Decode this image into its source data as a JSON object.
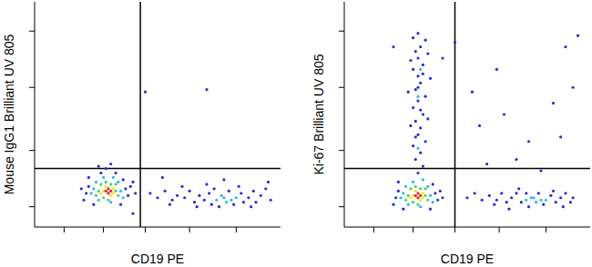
{
  "chart_data": [
    {
      "type": "scatter",
      "x_label": "CD19 PE",
      "y_label": "Mouse IgG1 Brilliant UV 805",
      "xlim": [
        0,
        100
      ],
      "ylim": [
        0,
        100
      ],
      "xticks": [
        12,
        28,
        45,
        63,
        82
      ],
      "yticks": [
        9,
        34,
        62,
        87
      ],
      "tick_labels": false,
      "gates": {
        "x": 43,
        "y": 26
      },
      "series": [
        {
          "color": "#2b2bd4",
          "points": [
            [
              21,
              15
            ],
            [
              22,
              18
            ],
            [
              37,
              17
            ],
            [
              38,
              14
            ],
            [
              24,
              10
            ],
            [
              36,
              21
            ],
            [
              27,
              24
            ],
            [
              33,
              24
            ],
            [
              20,
              12
            ],
            [
              39,
              18
            ],
            [
              29,
              26
            ],
            [
              22,
              22
            ],
            [
              35,
              10
            ],
            [
              40,
              20
            ],
            [
              26,
              27
            ],
            [
              31,
              28
            ],
            [
              19,
              17
            ],
            [
              41,
              15
            ],
            [
              47,
              15
            ],
            [
              50,
              13
            ],
            [
              53,
              16
            ],
            [
              56,
              12
            ],
            [
              58,
              14
            ],
            [
              61,
              13
            ],
            [
              63,
              16
            ],
            [
              65,
              11
            ],
            [
              67,
              14
            ],
            [
              69,
              12
            ],
            [
              71,
              15
            ],
            [
              72,
              10
            ],
            [
              73,
              17
            ],
            [
              75,
              9
            ],
            [
              79,
              16
            ],
            [
              81,
              10
            ],
            [
              84,
              15
            ],
            [
              85,
              11
            ],
            [
              87,
              13
            ],
            [
              89,
              16
            ],
            [
              90,
              11
            ],
            [
              92,
              14
            ],
            [
              94,
              17
            ],
            [
              96,
              12
            ],
            [
              60,
              18
            ],
            [
              70,
              19
            ],
            [
              83,
              18
            ],
            [
              88,
              9
            ],
            [
              66,
              9
            ],
            [
              55,
              10
            ],
            [
              45,
              60
            ],
            [
              70,
              61
            ],
            [
              95,
              20
            ],
            [
              40,
              6
            ],
            [
              52,
              22
            ],
            [
              77,
              21
            ]
          ]
        },
        {
          "color": "#2fb6e8",
          "points": [
            [
              24,
              17
            ],
            [
              35,
              16
            ],
            [
              26,
              12
            ],
            [
              34,
              20
            ],
            [
              28,
              22
            ],
            [
              31,
              11
            ],
            [
              23,
              15
            ],
            [
              36,
              13
            ],
            [
              32,
              22
            ],
            [
              25,
              20
            ],
            [
              74,
              12
            ],
            [
              77,
              13
            ],
            [
              80,
              12
            ],
            [
              78,
              11
            ],
            [
              82,
              13
            ],
            [
              76,
              14
            ]
          ]
        },
        {
          "color": "#4fd060",
          "points": [
            [
              26,
              16
            ],
            [
              33,
              16
            ],
            [
              28,
              13
            ],
            [
              31,
              19
            ],
            [
              27,
              19
            ],
            [
              34,
              14
            ],
            [
              25,
              14
            ],
            [
              30,
              12
            ],
            [
              33,
              19
            ],
            [
              29,
              20
            ]
          ]
        },
        {
          "color": "#f2e41e",
          "points": [
            [
              28,
              16
            ],
            [
              32,
              15
            ],
            [
              29,
              18
            ],
            [
              31,
              14
            ],
            [
              27,
              15
            ],
            [
              32,
              17
            ]
          ]
        },
        {
          "color": "#e0201c",
          "points": [
            [
              29,
              16
            ],
            [
              30,
              15
            ],
            [
              31,
              16
            ],
            [
              30,
              17
            ]
          ]
        }
      ]
    },
    {
      "type": "scatter",
      "x_label": "CD19 PE",
      "y_label": "Ki-67 Brilliant UV 805",
      "xlim": [
        0,
        100
      ],
      "ylim": [
        0,
        100
      ],
      "xticks": [
        12,
        28,
        45,
        63,
        82
      ],
      "yticks": [
        9,
        34,
        62,
        87
      ],
      "tick_labels": false,
      "gates": {
        "x": 45,
        "y": 26
      },
      "series": [
        {
          "color": "#2b2bd4",
          "points": [
            [
              21,
              13
            ],
            [
              22,
              16
            ],
            [
              37,
              15
            ],
            [
              38,
              12
            ],
            [
              24,
              8
            ],
            [
              36,
              19
            ],
            [
              20,
              10
            ],
            [
              39,
              16
            ],
            [
              35,
              8
            ],
            [
              22,
              20
            ],
            [
              40,
              13
            ],
            [
              30,
              24
            ],
            [
              32,
              27
            ],
            [
              29,
              30
            ],
            [
              31,
              33
            ],
            [
              28,
              36
            ],
            [
              33,
              38
            ],
            [
              30,
              41
            ],
            [
              31,
              44
            ],
            [
              29,
              47
            ],
            [
              32,
              50
            ],
            [
              28,
              53
            ],
            [
              30,
              56
            ],
            [
              33,
              58
            ],
            [
              29,
              61
            ],
            [
              31,
              64
            ],
            [
              30,
              67
            ],
            [
              28,
              70
            ],
            [
              32,
              72
            ],
            [
              30,
              75
            ],
            [
              29,
              78
            ],
            [
              31,
              80
            ],
            [
              33,
              83
            ],
            [
              28,
              84
            ],
            [
              30,
              86
            ],
            [
              27,
              45
            ],
            [
              34,
              48
            ],
            [
              26,
              60
            ],
            [
              35,
              66
            ],
            [
              27,
              74
            ],
            [
              34,
              77
            ],
            [
              31,
              52
            ],
            [
              30,
              62
            ],
            [
              32,
              68
            ],
            [
              29,
              40
            ],
            [
              50,
              13
            ],
            [
              53,
              15
            ],
            [
              56,
              12
            ],
            [
              59,
              14
            ],
            [
              62,
              12
            ],
            [
              64,
              15
            ],
            [
              66,
              11
            ],
            [
              68,
              13
            ],
            [
              70,
              15
            ],
            [
              72,
              11
            ],
            [
              74,
              15
            ],
            [
              75,
              9
            ],
            [
              79,
              15
            ],
            [
              81,
              10
            ],
            [
              84,
              14
            ],
            [
              86,
              11
            ],
            [
              88,
              13
            ],
            [
              90,
              15
            ],
            [
              92,
              11
            ],
            [
              93,
              13
            ],
            [
              61,
              10
            ],
            [
              71,
              17
            ],
            [
              85,
              16
            ],
            [
              89,
              9
            ],
            [
              67,
              8
            ],
            [
              55,
              45
            ],
            [
              62,
              70
            ],
            [
              75,
              38
            ],
            [
              85,
              55
            ],
            [
              90,
              80
            ],
            [
              95,
              85
            ],
            [
              70,
              30
            ],
            [
              58,
              28
            ],
            [
              80,
              25
            ],
            [
              88,
              40
            ],
            [
              52,
              60
            ],
            [
              65,
              50
            ],
            [
              93,
              62
            ],
            [
              45,
              82
            ],
            [
              40,
              75
            ],
            [
              20,
              80
            ]
          ]
        },
        {
          "color": "#2fb6e8",
          "points": [
            [
              24,
              15
            ],
            [
              35,
              14
            ],
            [
              26,
              10
            ],
            [
              34,
              18
            ],
            [
              28,
              20
            ],
            [
              31,
              9
            ],
            [
              23,
              13
            ],
            [
              36,
              11
            ],
            [
              32,
              21
            ],
            [
              25,
              18
            ],
            [
              30,
              58
            ],
            [
              31,
              70
            ],
            [
              30,
              35
            ],
            [
              74,
              12
            ],
            [
              77,
              13
            ],
            [
              80,
              12
            ],
            [
              78,
              11
            ],
            [
              82,
              12
            ],
            [
              76,
              13
            ]
          ]
        },
        {
          "color": "#4fd060",
          "points": [
            [
              26,
              14
            ],
            [
              33,
              14
            ],
            [
              28,
              11
            ],
            [
              31,
              17
            ],
            [
              27,
              17
            ],
            [
              34,
              12
            ],
            [
              25,
              12
            ],
            [
              30,
              10
            ],
            [
              33,
              17
            ],
            [
              29,
              18
            ]
          ]
        },
        {
          "color": "#f2e41e",
          "points": [
            [
              28,
              14
            ],
            [
              32,
              13
            ],
            [
              29,
              16
            ],
            [
              31,
              12
            ],
            [
              27,
              13
            ],
            [
              32,
              15
            ]
          ]
        },
        {
          "color": "#e0201c",
          "points": [
            [
              29,
              14
            ],
            [
              30,
              13
            ],
            [
              31,
              14
            ],
            [
              30,
              15
            ]
          ]
        }
      ]
    }
  ]
}
